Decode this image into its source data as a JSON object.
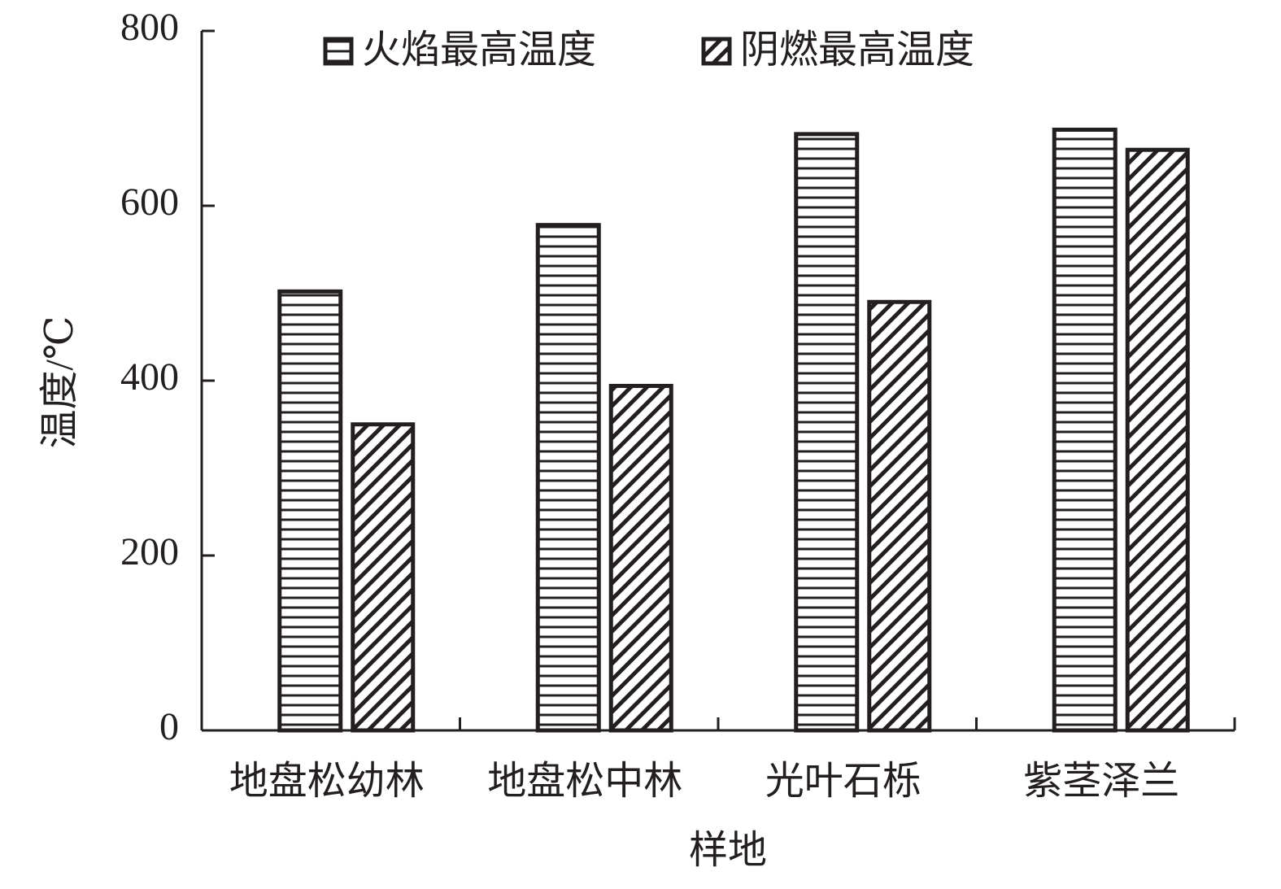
{
  "chart_data": {
    "type": "bar",
    "x_label": "样地",
    "y_label": "温度/℃",
    "categories": [
      "地盘松幼林",
      "地盘松中林",
      "光叶石栎",
      "紫茎泽兰"
    ],
    "series": [
      {
        "name": "火焰最高温度",
        "color": "#231f20",
        "pattern": "horizontal",
        "values": [
          502,
          578,
          682,
          687
        ]
      },
      {
        "name": "阴燃最高温度",
        "color": "#231f20",
        "pattern": "diagonal",
        "values": [
          350,
          394,
          490,
          664
        ]
      }
    ],
    "ylim": [
      0,
      800
    ],
    "yticks": [
      0,
      200,
      400,
      600,
      800
    ],
    "grid": false
  }
}
